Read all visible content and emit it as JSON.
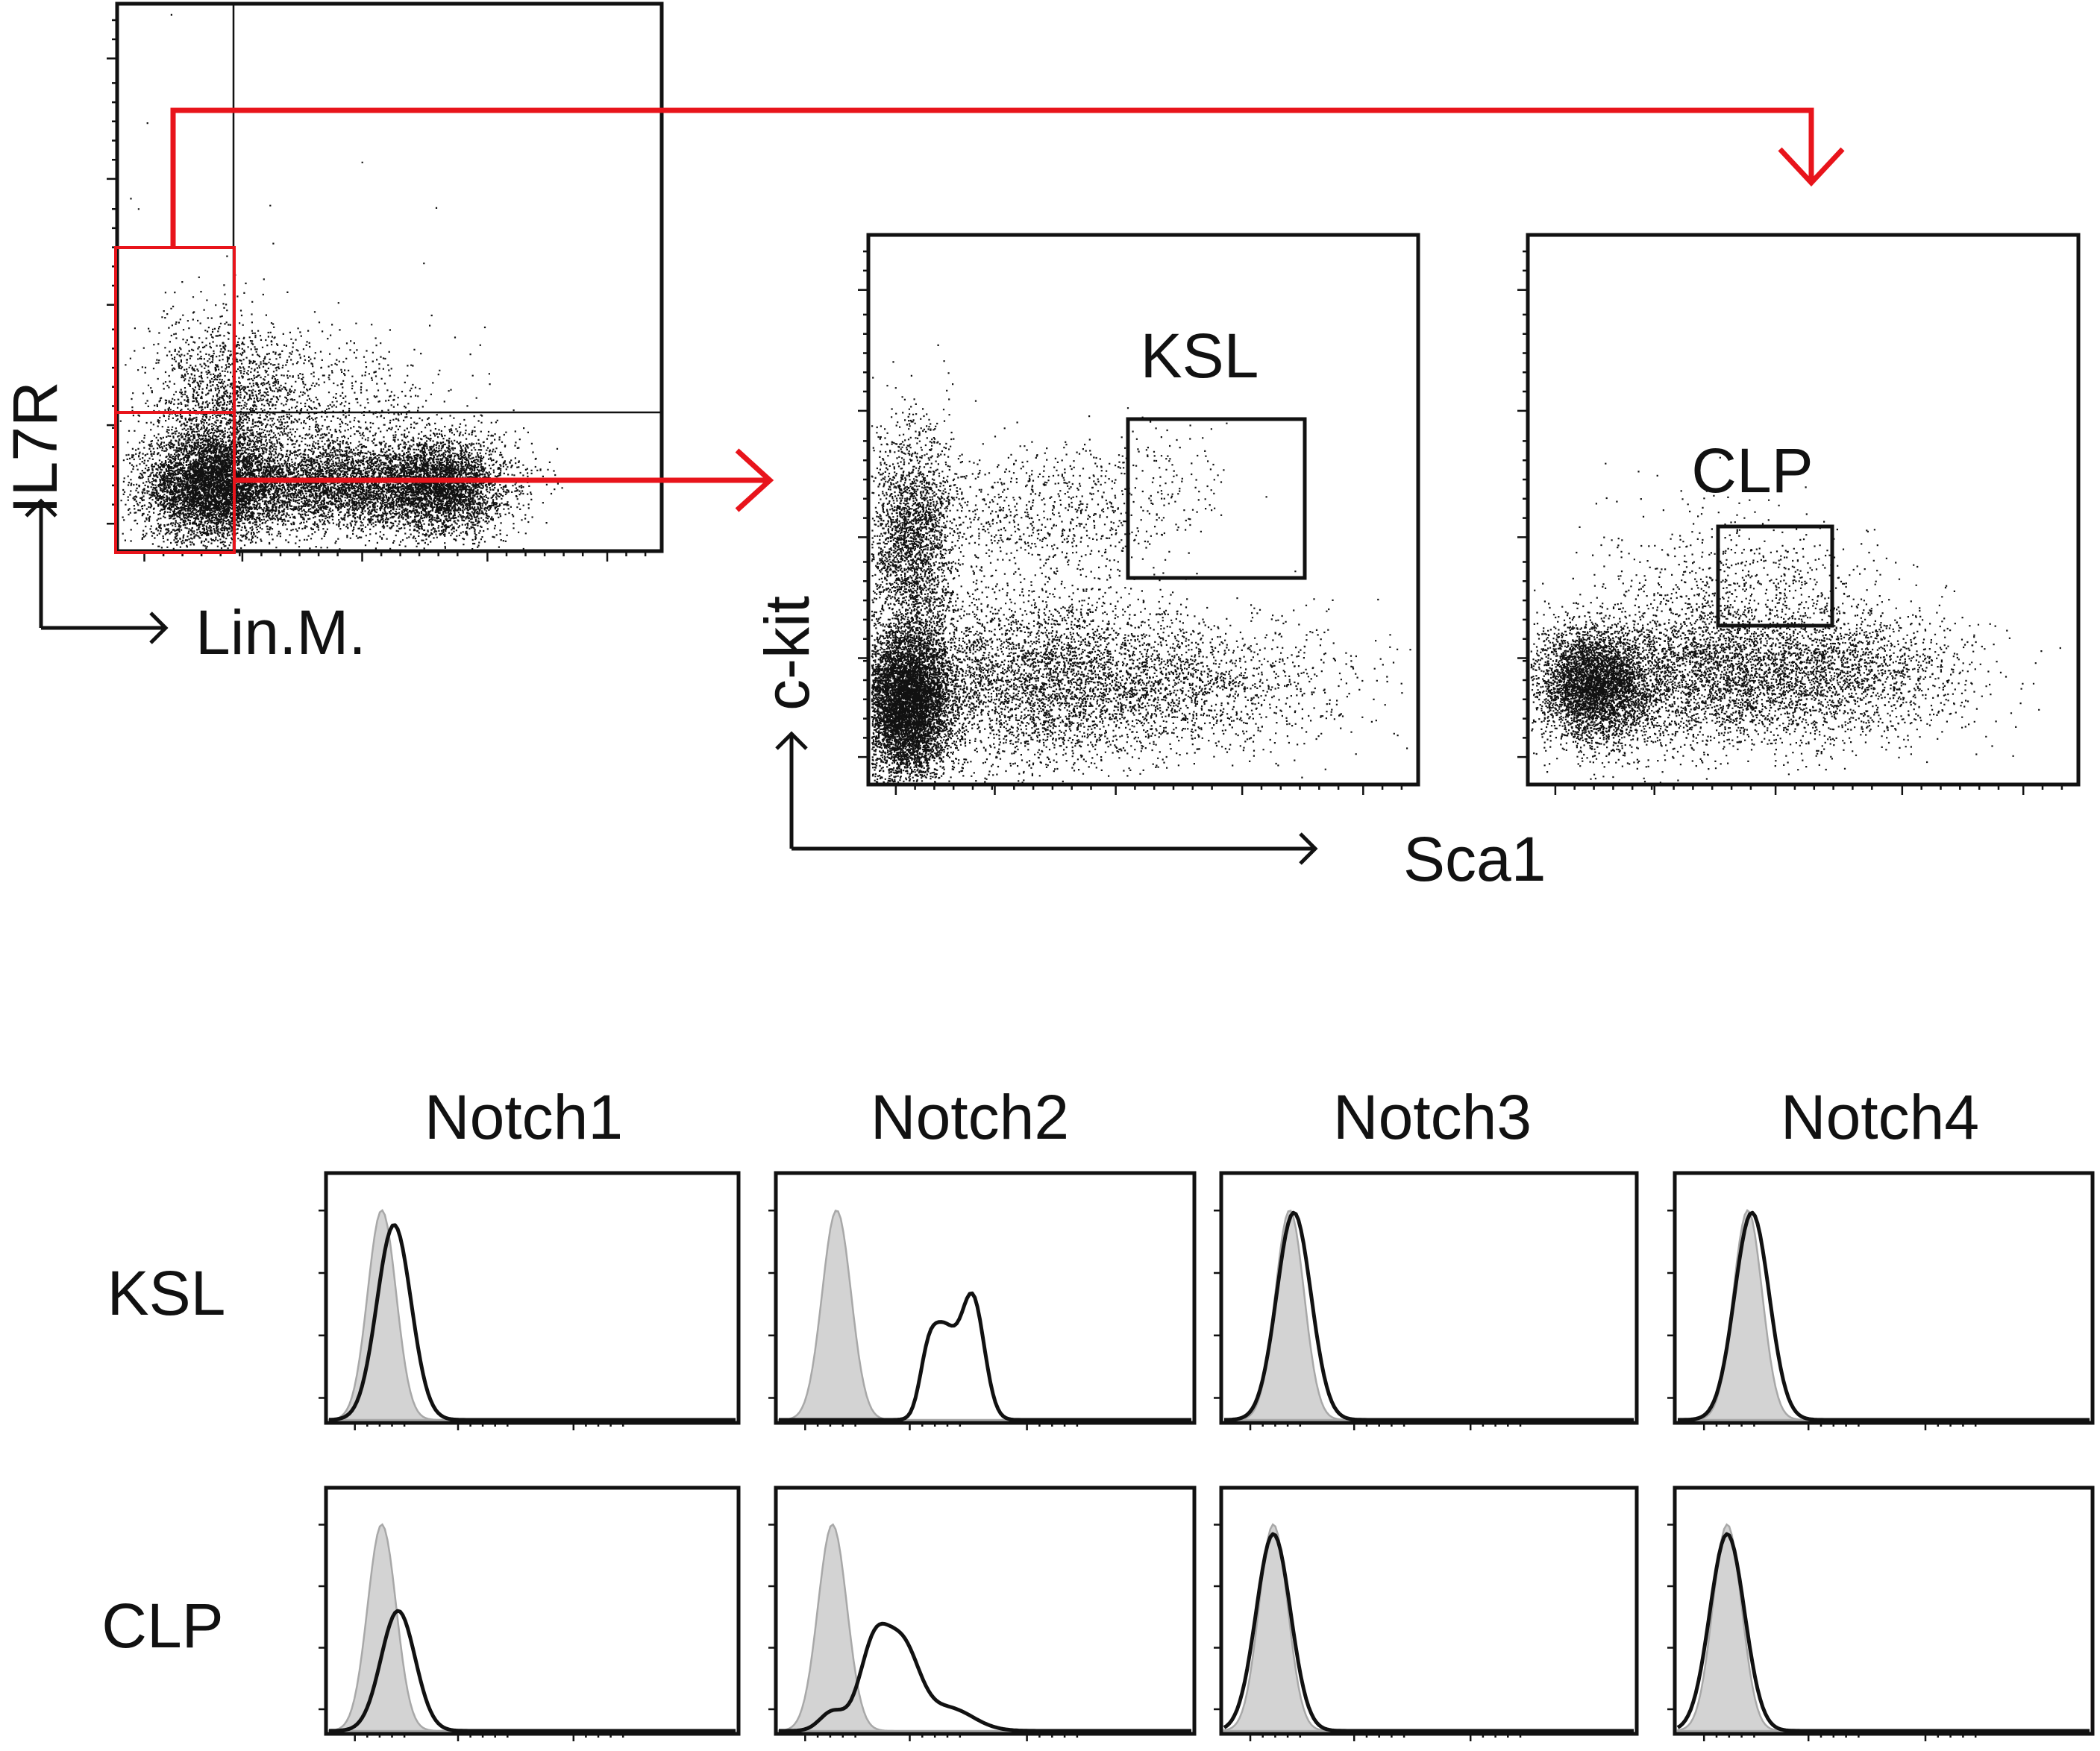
{
  "colors": {
    "gate_red": "#e8141b",
    "ink": "#111111",
    "isotype_fill": "#d3d3d3",
    "isotype_line": "#a8a8a8",
    "stain_line": "#111111"
  },
  "labels": {
    "il7r": "IL7R",
    "lin": "Lin.M.",
    "ckit": "c-kit",
    "sca1": "Sca1",
    "gate_ksl": "KSL",
    "gate_clp": "CLP"
  },
  "chart_data": [
    {
      "type": "scatter",
      "panel": "lineage",
      "xlabel": "Lin.M.",
      "ylabel": "IL7R",
      "populations": [
        {
          "cx": 0.3,
          "cy": 0.32,
          "sx": 0.11,
          "sy": 0.075,
          "n": 3800,
          "extra_cy": 0.42,
          "extra_sy": 0.08,
          "extra_n": 1200
        },
        {
          "cx": 0.62,
          "cy": 0.32,
          "sx": 0.08,
          "sy": 0.055,
          "n": 2600,
          "extra_cy": 0.4,
          "extra_sy": 0.12,
          "extra_n": 500
        }
      ],
      "gates": [
        "Lin- IL7R+ (to CLP plot)",
        "Lin- IL7R- (to KSL plot)"
      ]
    },
    {
      "type": "scatter",
      "panel": "ksl",
      "xlabel": "Sca1",
      "ylabel": "c-kit",
      "gate": "KSL"
    },
    {
      "type": "scatter",
      "panel": "clp",
      "xlabel": "Sca1",
      "ylabel": "c-kit",
      "gate": "CLP"
    },
    {
      "type": "histogram",
      "columns": [
        "Notch1",
        "Notch2",
        "Notch3",
        "Notch4"
      ],
      "rows": [
        "KSL",
        "CLP"
      ],
      "series_meaning": [
        "isotype control (grey filled)",
        "Notch staining (black line)"
      ],
      "panels": [
        {
          "row": "KSL",
          "col": "Notch1",
          "iso_peak": 0.13,
          "stain_peak": 0.16,
          "stain_shape": "single",
          "stain_height": 0.8
        },
        {
          "row": "KSL",
          "col": "Notch2",
          "iso_peak": 0.14,
          "stain_peak": 0.45,
          "stain_shape": "double",
          "stain_height": 0.52
        },
        {
          "row": "KSL",
          "col": "Notch3",
          "iso_peak": 0.16,
          "stain_peak": 0.17,
          "stain_shape": "single",
          "stain_height": 0.85
        },
        {
          "row": "KSL",
          "col": "Notch4",
          "iso_peak": 0.17,
          "stain_peak": 0.18,
          "stain_shape": "single",
          "stain_height": 0.85
        },
        {
          "row": "CLP",
          "col": "Notch1",
          "iso_peak": 0.13,
          "stain_peak": 0.17,
          "stain_shape": "single",
          "stain_height": 0.5
        },
        {
          "row": "CLP",
          "col": "Notch2",
          "iso_peak": 0.13,
          "stain_peak": 0.27,
          "stain_shape": "broad",
          "stain_height": 0.38
        },
        {
          "row": "CLP",
          "col": "Notch3",
          "iso_peak": 0.12,
          "stain_peak": 0.12,
          "stain_shape": "single",
          "stain_height": 0.82
        },
        {
          "row": "CLP",
          "col": "Notch4",
          "iso_peak": 0.12,
          "stain_peak": 0.12,
          "stain_shape": "single",
          "stain_height": 0.82
        }
      ]
    }
  ]
}
